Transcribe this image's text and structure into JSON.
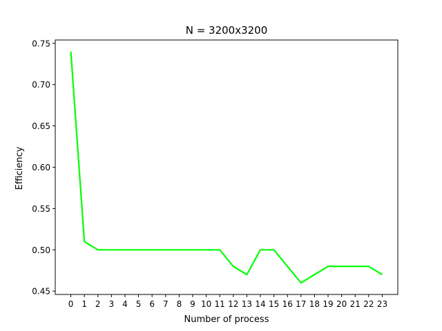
{
  "chart_data": {
    "type": "line",
    "title": "N = 3200x3200",
    "xlabel": "Number of process",
    "ylabel": "Efficiency",
    "categories": [
      "0",
      "1",
      "2",
      "3",
      "4",
      "5",
      "6",
      "7",
      "8",
      "9",
      "10",
      "11",
      "12",
      "13",
      "14",
      "15",
      "16",
      "17",
      "18",
      "19",
      "20",
      "21",
      "22",
      "23"
    ],
    "series": [
      {
        "color": "#00ff00",
        "values": [
          0.74,
          0.51,
          0.5,
          0.5,
          0.5,
          0.5,
          0.5,
          0.5,
          0.5,
          0.5,
          0.5,
          0.5,
          0.48,
          0.47,
          0.5,
          0.5,
          0.48,
          0.46,
          0.47,
          0.48,
          0.48,
          0.48,
          0.48,
          0.47
        ]
      }
    ],
    "xlim": [
      -1.15,
      24.15
    ],
    "ylim": [
      0.446,
      0.754
    ],
    "yticks": [
      "0.45",
      "0.50",
      "0.55",
      "0.60",
      "0.65",
      "0.70",
      "0.75"
    ],
    "grid": false,
    "legend": "none"
  }
}
